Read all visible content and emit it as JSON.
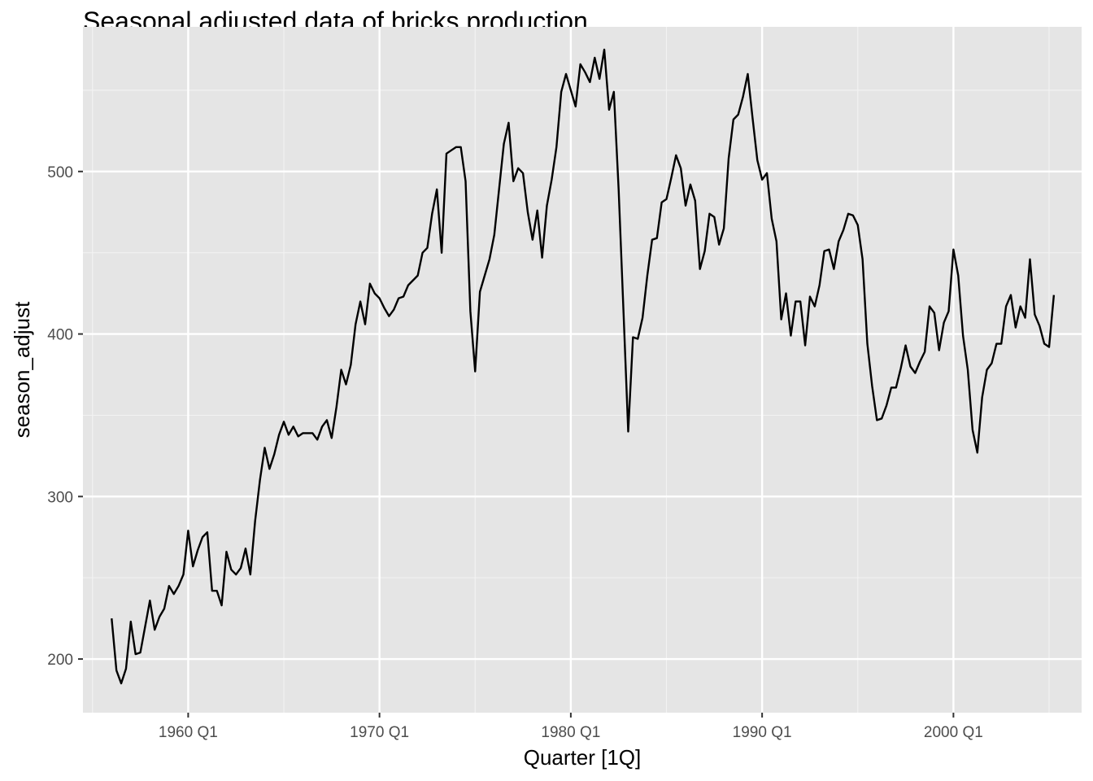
{
  "chart_data": {
    "type": "line",
    "title": "Seasonal adjusted data of bricks production",
    "xlabel": "Quarter [1Q]",
    "ylabel": "season_adjust",
    "x_start": "1956 Q1",
    "x_tick_labels": [
      "1960 Q1",
      "1970 Q1",
      "1980 Q1",
      "1990 Q1",
      "2000 Q1"
    ],
    "x_ticks_year": [
      1960,
      1970,
      1980,
      1990,
      2000
    ],
    "y_ticks": [
      200,
      300,
      400,
      500
    ],
    "xlim": [
      1954.5,
      2006.7
    ],
    "ylim": [
      167,
      589
    ],
    "grid": true,
    "background": "#e5e5e5",
    "line_color": "#000000",
    "values": [
      225,
      193,
      185,
      194,
      223,
      203,
      204,
      220,
      236,
      218,
      226,
      231,
      245,
      240,
      245,
      252,
      279,
      257,
      267,
      275,
      278,
      242,
      242,
      233,
      266,
      255,
      252,
      256,
      268,
      252,
      285,
      310,
      330,
      317,
      326,
      338,
      346,
      338,
      343,
      337,
      339,
      339,
      339,
      335,
      343,
      347,
      336,
      355,
      378,
      369,
      381,
      406,
      420,
      406,
      431,
      425,
      422,
      416,
      411,
      415,
      422,
      423,
      430,
      433,
      436,
      450,
      453,
      474,
      489,
      450,
      511,
      513,
      515,
      515,
      494,
      414,
      377,
      426,
      436,
      446,
      461,
      489,
      517,
      530,
      494,
      502,
      499,
      475,
      458,
      476,
      447,
      479,
      495,
      515,
      549,
      560,
      550,
      540,
      566,
      561,
      555,
      570,
      557,
      575,
      538,
      549,
      489,
      415,
      340,
      398,
      397,
      410,
      436,
      458,
      459,
      481,
      483,
      496,
      510,
      502,
      479,
      492,
      482,
      440,
      451,
      474,
      472,
      455,
      465,
      508,
      532,
      535,
      546,
      560,
      533,
      507,
      495,
      499,
      471,
      457,
      409,
      425,
      399,
      420,
      420,
      393,
      423,
      417,
      430,
      451,
      452,
      440,
      457,
      464,
      474,
      473,
      467,
      446,
      394,
      368,
      347,
      348,
      356,
      367,
      367,
      379,
      393,
      380,
      376,
      383,
      389,
      417,
      413,
      390,
      407,
      414,
      452,
      436,
      399,
      378,
      341,
      327,
      361,
      378,
      382,
      394,
      394,
      417,
      424,
      404,
      417,
      410,
      446,
      412,
      405,
      394,
      392,
      424
    ]
  }
}
